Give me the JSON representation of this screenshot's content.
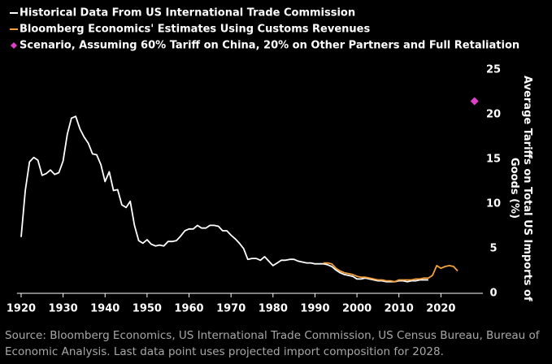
{
  "chart_data": {
    "type": "line",
    "y_label": "Average Tariffs on Total US Imports of Goods (%)",
    "source": "Source: Bloomberg Economics, US International Trade Commission, US Census Bureau, Bureau of Economic Analysis. Last data point uses projected import composition for 2028.",
    "xlim": [
      1919,
      2030
    ],
    "xticks": [
      1920,
      1930,
      1940,
      1950,
      1960,
      1970,
      1980,
      1990,
      2000,
      2010,
      2020
    ],
    "ylim": [
      0,
      25
    ],
    "yticks": [
      0,
      5,
      10,
      15,
      20,
      25
    ],
    "series": [
      {
        "name": "Historical Data From US International Trade Commission",
        "color": "#ffffff",
        "kind": "line",
        "x": [
          1920,
          1921,
          1922,
          1923,
          1924,
          1925,
          1926,
          1927,
          1928,
          1929,
          1930,
          1931,
          1932,
          1933,
          1934,
          1935,
          1936,
          1937,
          1938,
          1939,
          1940,
          1941,
          1942,
          1943,
          1944,
          1945,
          1946,
          1947,
          1948,
          1949,
          1950,
          1951,
          1952,
          1953,
          1954,
          1955,
          1956,
          1957,
          1958,
          1959,
          1960,
          1961,
          1962,
          1963,
          1964,
          1965,
          1966,
          1967,
          1968,
          1969,
          1970,
          1971,
          1972,
          1973,
          1974,
          1975,
          1976,
          1977,
          1978,
          1979,
          1980,
          1981,
          1982,
          1983,
          1984,
          1985,
          1986,
          1987,
          1988,
          1989,
          1990,
          1991,
          1992,
          1993,
          1994,
          1995,
          1996,
          1997,
          1998,
          1999,
          2000,
          2001,
          2002,
          2003,
          2004,
          2005,
          2006,
          2007,
          2008,
          2009,
          2010,
          2011,
          2012,
          2013,
          2014,
          2015,
          2016,
          2017
        ],
        "values": [
          6.3,
          11.5,
          14.7,
          15.2,
          14.9,
          13.2,
          13.4,
          13.8,
          13.3,
          13.5,
          14.8,
          17.8,
          19.6,
          19.8,
          18.4,
          17.5,
          16.8,
          15.6,
          15.5,
          14.4,
          12.5,
          13.6,
          11.5,
          11.6,
          9.9,
          9.6,
          10.3,
          7.6,
          5.9,
          5.6,
          6.0,
          5.5,
          5.3,
          5.4,
          5.3,
          5.8,
          5.8,
          5.9,
          6.4,
          7.0,
          7.2,
          7.2,
          7.6,
          7.3,
          7.3,
          7.6,
          7.6,
          7.5,
          7.0,
          7.0,
          6.5,
          6.1,
          5.6,
          5.0,
          3.8,
          3.9,
          3.9,
          3.7,
          4.1,
          3.6,
          3.1,
          3.4,
          3.7,
          3.7,
          3.8,
          3.8,
          3.6,
          3.5,
          3.4,
          3.4,
          3.3,
          3.3,
          3.3,
          3.2,
          3.0,
          2.6,
          2.3,
          2.1,
          2.0,
          1.9,
          1.6,
          1.6,
          1.7,
          1.6,
          1.5,
          1.4,
          1.4,
          1.3,
          1.3,
          1.3,
          1.4,
          1.4,
          1.3,
          1.4,
          1.4,
          1.5,
          1.5,
          1.5
        ]
      },
      {
        "name": "Bloomberg Economics' Estimates Using Customs Revenues",
        "color": "#f5a03c",
        "kind": "line",
        "x": [
          1992,
          1993,
          1994,
          1995,
          1996,
          1997,
          1998,
          1999,
          2000,
          2001,
          2002,
          2003,
          2004,
          2005,
          2006,
          2007,
          2008,
          2009,
          2010,
          2011,
          2012,
          2013,
          2014,
          2015,
          2016,
          2017,
          2018,
          2019,
          2020,
          2021,
          2022,
          2023,
          2024
        ],
        "values": [
          3.4,
          3.4,
          3.3,
          2.8,
          2.5,
          2.3,
          2.2,
          2.1,
          1.9,
          1.8,
          1.8,
          1.7,
          1.6,
          1.5,
          1.5,
          1.4,
          1.4,
          1.3,
          1.5,
          1.5,
          1.5,
          1.5,
          1.6,
          1.6,
          1.7,
          1.7,
          2.0,
          3.1,
          2.8,
          3.0,
          3.1,
          3.0,
          2.5
        ]
      },
      {
        "name": "Scenario, Assuming 60% Tariff on China, 20% on Other Partners and Full Retaliation",
        "color": "#e040c8",
        "kind": "scatter",
        "x": [
          2028
        ],
        "values": [
          21.5
        ]
      }
    ]
  }
}
